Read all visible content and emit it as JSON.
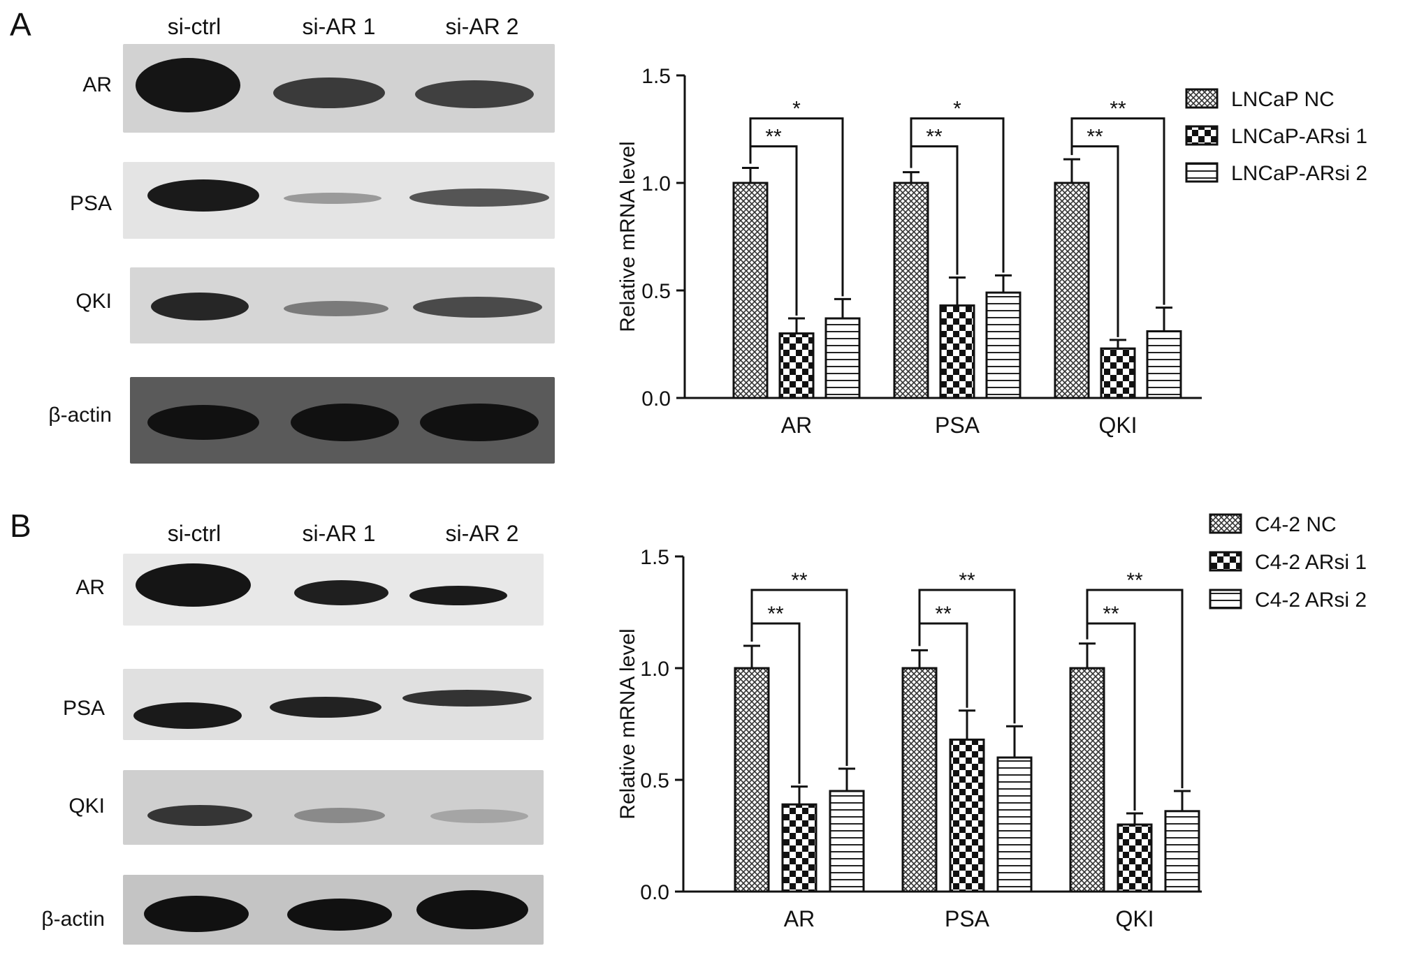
{
  "panels": [
    {
      "letter": "A",
      "lanes": [
        "si-ctrl",
        "si-AR 1",
        "si-AR 2"
      ],
      "rows": [
        "AR",
        "PSA",
        "QKI",
        "β-actin"
      ],
      "chart_data": {
        "type": "bar",
        "categories": [
          "AR",
          "PSA",
          "QKI"
        ],
        "series": [
          {
            "name": "LNCaP NC",
            "pattern": "dots",
            "values": [
              1.0,
              1.0,
              1.0
            ],
            "errors": [
              0.07,
              0.05,
              0.11
            ]
          },
          {
            "name": "LNCaP-ARsi 1",
            "pattern": "checker",
            "values": [
              0.3,
              0.43,
              0.23
            ],
            "errors": [
              0.07,
              0.13,
              0.04
            ]
          },
          {
            "name": "LNCaP-ARsi 2",
            "pattern": "hstripe",
            "values": [
              0.37,
              0.49,
              0.31
            ],
            "errors": [
              0.09,
              0.08,
              0.11
            ]
          }
        ],
        "significance": [
          {
            "category": "AR",
            "near": "**",
            "far": "*"
          },
          {
            "category": "PSA",
            "near": "**",
            "far": "*"
          },
          {
            "category": "QKI",
            "near": "**",
            "far": "**"
          }
        ],
        "ylabel": "Relative mRNA level",
        "ylim": [
          0,
          1.5
        ],
        "yticks": [
          "0.0",
          "0.5",
          "1.0",
          "1.5"
        ],
        "legend": "top-right"
      }
    },
    {
      "letter": "B",
      "lanes": [
        "si-ctrl",
        "si-AR 1",
        "si-AR 2"
      ],
      "rows": [
        "AR",
        "PSA",
        "QKI",
        "β-actin"
      ],
      "chart_data": {
        "type": "bar",
        "categories": [
          "AR",
          "PSA",
          "QKI"
        ],
        "series": [
          {
            "name": "C4-2 NC",
            "pattern": "dots",
            "values": [
              1.0,
              1.0,
              1.0
            ],
            "errors": [
              0.1,
              0.08,
              0.11
            ]
          },
          {
            "name": "C4-2 ARsi 1",
            "pattern": "checker",
            "values": [
              0.39,
              0.68,
              0.3
            ],
            "errors": [
              0.08,
              0.13,
              0.05
            ]
          },
          {
            "name": "C4-2 ARsi 2",
            "pattern": "hstripe",
            "values": [
              0.45,
              0.6,
              0.36
            ],
            "errors": [
              0.1,
              0.14,
              0.09
            ]
          }
        ],
        "significance": [
          {
            "category": "AR",
            "near": "**",
            "far": "**"
          },
          {
            "category": "PSA",
            "near": "**",
            "far": "**"
          },
          {
            "category": "QKI",
            "near": "**",
            "far": "**"
          }
        ],
        "ylabel": "Relative mRNA level",
        "ylim": [
          0,
          1.5
        ],
        "yticks": [
          "0.0",
          "0.5",
          "1.0",
          "1.5"
        ],
        "legend": "top-right"
      }
    }
  ]
}
